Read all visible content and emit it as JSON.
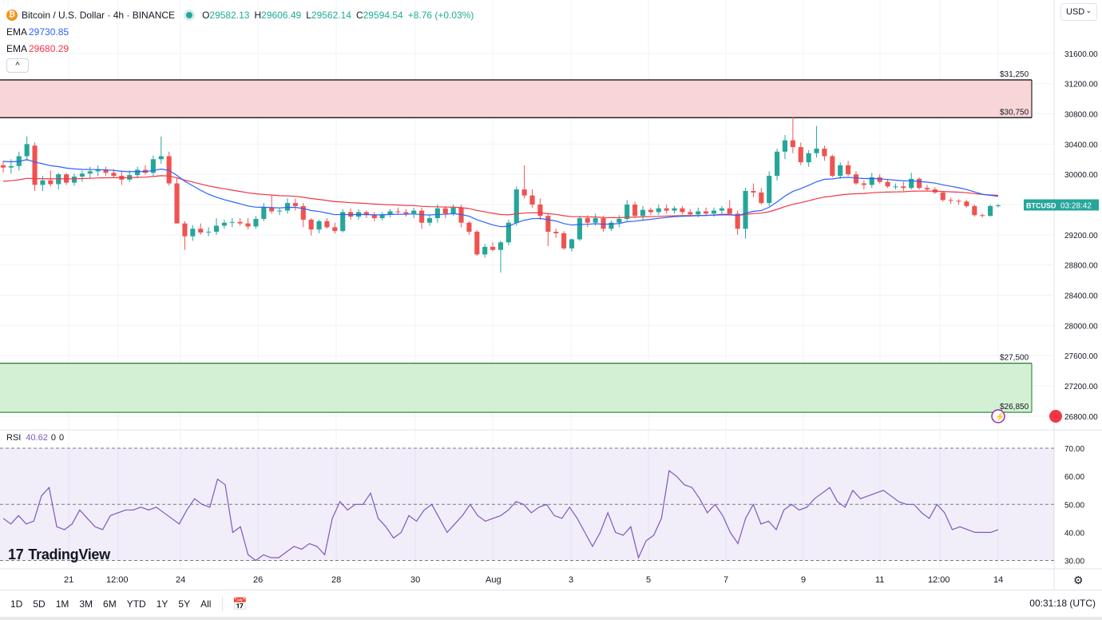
{
  "header": {
    "symbol_title": "Bitcoin / U.S. Dollar · 4h · BINANCE",
    "btc_badge": "₿",
    "ohlc": {
      "o_label": "O",
      "o": "29582.13",
      "h_label": "H",
      "h": "29606.49",
      "l_label": "L",
      "l": "29562.14",
      "c_label": "C",
      "c": "29594.54",
      "change": "+8.76 (+0.03%)"
    },
    "ema1_label": "EMA",
    "ema1_value": "29730.85",
    "ema2_label": "EMA",
    "ema2_value": "29680.29",
    "collapse_icon": "^",
    "currency": "USD"
  },
  "colors": {
    "up": "#26a69a",
    "down": "#ef5350",
    "ema_fast": "#2962ff",
    "ema_slow": "#f23645",
    "rsi": "#7e57c2",
    "resistance_zone": "#f8d6d8",
    "support_zone": "#d4f0d4"
  },
  "chart_data": [
    {
      "type": "candlestick",
      "title": "Bitcoin / U.S. Dollar · 4h · BINANCE",
      "price_axis_ticks": [
        "31600.00",
        "31200.00",
        "30800.00",
        "30400.00",
        "30000.00",
        "29600.00",
        "29200.00",
        "28800.00",
        "28400.00",
        "28000.00",
        "27600.00",
        "27200.00",
        "26800.00"
      ],
      "price_ylim": [
        26650,
        31990
      ],
      "time_axis_ticks": [
        "21",
        "12:00",
        "24",
        "26",
        "28",
        "30",
        "Aug",
        "3",
        "5",
        "7",
        "9",
        "11",
        "12:00",
        "14"
      ],
      "levels": [
        {
          "label": "$31,250",
          "value": 31250
        },
        {
          "label": "$30,750",
          "value": 30750
        },
        {
          "label": "$27,500",
          "value": 27500
        },
        {
          "label": "$26,850",
          "value": 26850
        }
      ],
      "zones": [
        {
          "name": "resistance",
          "from": 30750,
          "to": 31250
        },
        {
          "name": "support",
          "from": 26850,
          "to": 27500
        }
      ],
      "last_price_tag": {
        "symbol": "BTCUSD",
        "countdown": "03:28:42",
        "value": 29595
      },
      "candles": [
        [
          30120,
          30180,
          30020,
          30090
        ],
        [
          30090,
          30200,
          30010,
          30110
        ],
        [
          30110,
          30300,
          30050,
          30240
        ],
        [
          30240,
          30500,
          30180,
          30400
        ],
        [
          30380,
          30420,
          29780,
          29860
        ],
        [
          29860,
          29980,
          29780,
          29920
        ],
        [
          29920,
          30050,
          29840,
          29870
        ],
        [
          29870,
          30020,
          29800,
          30000
        ],
        [
          30000,
          30020,
          29860,
          29890
        ],
        [
          29890,
          30010,
          29850,
          29970
        ],
        [
          29970,
          30050,
          29900,
          30010
        ],
        [
          30010,
          30100,
          29950,
          30040
        ],
        [
          30040,
          30120,
          29980,
          30060
        ],
        [
          30060,
          30100,
          29980,
          30020
        ],
        [
          30020,
          30070,
          29960,
          29980
        ],
        [
          29980,
          30050,
          29860,
          29930
        ],
        [
          29930,
          30050,
          29900,
          29990
        ],
        [
          29990,
          30100,
          29950,
          30060
        ],
        [
          30060,
          30120,
          30000,
          30020
        ],
        [
          30020,
          30250,
          29980,
          30200
        ],
        [
          30200,
          30500,
          30140,
          30240
        ],
        [
          30240,
          30300,
          29850,
          29880
        ],
        [
          29880,
          29960,
          29350,
          29350
        ],
        [
          29350,
          29380,
          29000,
          29180
        ],
        [
          29180,
          29330,
          29120,
          29280
        ],
        [
          29280,
          29350,
          29200,
          29230
        ],
        [
          29230,
          29300,
          29180,
          29240
        ],
        [
          29240,
          29420,
          29200,
          29320
        ],
        [
          29320,
          29400,
          29280,
          29360
        ],
        [
          29360,
          29420,
          29300,
          29370
        ],
        [
          29370,
          29420,
          29320,
          29350
        ],
        [
          29350,
          29420,
          29270,
          29310
        ],
        [
          29310,
          29450,
          29280,
          29410
        ],
        [
          29410,
          29620,
          29380,
          29560
        ],
        [
          29560,
          29720,
          29480,
          29510
        ],
        [
          29510,
          29560,
          29460,
          29520
        ],
        [
          29520,
          29680,
          29480,
          29620
        ],
        [
          29620,
          29680,
          29520,
          29580
        ],
        [
          29580,
          29620,
          29300,
          29400
        ],
        [
          29400,
          29420,
          29190,
          29270
        ],
        [
          29270,
          29400,
          29220,
          29380
        ],
        [
          29380,
          29420,
          29280,
          29300
        ],
        [
          29300,
          29360,
          29220,
          29250
        ],
        [
          29250,
          29540,
          29230,
          29500
        ],
        [
          29500,
          29550,
          29400,
          29440
        ],
        [
          29440,
          29540,
          29400,
          29500
        ],
        [
          29500,
          29520,
          29420,
          29460
        ],
        [
          29460,
          29500,
          29380,
          29420
        ],
        [
          29420,
          29500,
          29390,
          29470
        ],
        [
          29470,
          29540,
          29430,
          29510
        ],
        [
          29510,
          29560,
          29470,
          29500
        ],
        [
          29500,
          29540,
          29440,
          29480
        ],
        [
          29480,
          29560,
          29420,
          29520
        ],
        [
          29520,
          29560,
          29280,
          29360
        ],
        [
          29360,
          29460,
          29320,
          29420
        ],
        [
          29420,
          29600,
          29360,
          29550
        ],
        [
          29550,
          29580,
          29420,
          29480
        ],
        [
          29480,
          29600,
          29450,
          29560
        ],
        [
          29560,
          29600,
          29300,
          29360
        ],
        [
          29360,
          29380,
          29200,
          29240
        ],
        [
          29240,
          29260,
          28920,
          28940
        ],
        [
          28940,
          29080,
          28900,
          29040
        ],
        [
          29040,
          29100,
          28980,
          29000
        ],
        [
          29000,
          29120,
          28700,
          29100
        ],
        [
          29100,
          29400,
          29060,
          29360
        ],
        [
          29360,
          29840,
          29320,
          29800
        ],
        [
          29800,
          30120,
          29680,
          29720
        ],
        [
          29720,
          29800,
          29560,
          29600
        ],
        [
          29600,
          29680,
          29400,
          29450
        ],
        [
          29450,
          29480,
          29050,
          29240
        ],
        [
          29240,
          29280,
          29160,
          29220
        ],
        [
          29220,
          29250,
          29000,
          29020
        ],
        [
          29020,
          29150,
          28980,
          29140
        ],
        [
          29140,
          29450,
          29120,
          29420
        ],
        [
          29420,
          29460,
          29300,
          29360
        ],
        [
          29360,
          29480,
          29320,
          29420
        ],
        [
          29420,
          29450,
          29240,
          29280
        ],
        [
          29280,
          29390,
          29250,
          29360
        ],
        [
          29360,
          29460,
          29300,
          29410
        ],
        [
          29410,
          29660,
          29380,
          29600
        ],
        [
          29600,
          29640,
          29420,
          29450
        ],
        [
          29450,
          29580,
          29400,
          29530
        ],
        [
          29530,
          29560,
          29460,
          29500
        ],
        [
          29500,
          29600,
          29460,
          29550
        ],
        [
          29550,
          29600,
          29480,
          29520
        ],
        [
          29520,
          29580,
          29480,
          29550
        ],
        [
          29550,
          29580,
          29470,
          29500
        ],
        [
          29500,
          29540,
          29440,
          29470
        ],
        [
          29470,
          29560,
          29430,
          29510
        ],
        [
          29510,
          29560,
          29450,
          29480
        ],
        [
          29480,
          29560,
          29440,
          29520
        ],
        [
          29520,
          29580,
          29470,
          29550
        ],
        [
          29550,
          29660,
          29460,
          29480
        ],
        [
          29480,
          29520,
          29200,
          29280
        ],
        [
          29280,
          29820,
          29150,
          29780
        ],
        [
          29780,
          29880,
          29700,
          29760
        ],
        [
          29760,
          29820,
          29600,
          29620
        ],
        [
          29620,
          30040,
          29580,
          29980
        ],
        [
          29980,
          30340,
          29920,
          30300
        ],
        [
          30300,
          30520,
          30200,
          30450
        ],
        [
          30450,
          30760,
          30280,
          30360
        ],
        [
          30360,
          30420,
          30120,
          30160
        ],
        [
          30160,
          30320,
          30100,
          30280
        ],
        [
          30280,
          30640,
          30220,
          30340
        ],
        [
          30340,
          30380,
          30180,
          30240
        ],
        [
          30240,
          30260,
          29960,
          29980
        ],
        [
          29980,
          30160,
          29940,
          30120
        ],
        [
          30120,
          30180,
          29980,
          30000
        ],
        [
          30000,
          30040,
          29860,
          29880
        ],
        [
          29880,
          29920,
          29800,
          29860
        ],
        [
          29860,
          30020,
          29820,
          29960
        ],
        [
          29960,
          30000,
          29880,
          29900
        ],
        [
          29900,
          29940,
          29820,
          29840
        ],
        [
          29840,
          29880,
          29800,
          29840
        ],
        [
          29840,
          29900,
          29780,
          29820
        ],
        [
          29820,
          30020,
          29800,
          29940
        ],
        [
          29940,
          29960,
          29800,
          29820
        ],
        [
          29820,
          29860,
          29780,
          29800
        ],
        [
          29800,
          29830,
          29740,
          29760
        ],
        [
          29760,
          29780,
          29640,
          29660
        ],
        [
          29660,
          29690,
          29610,
          29650
        ],
        [
          29650,
          29670,
          29600,
          29640
        ],
        [
          29640,
          29660,
          29560,
          29580
        ],
        [
          29580,
          29600,
          29440,
          29460
        ],
        [
          29460,
          29480,
          29430,
          29450
        ],
        [
          29450,
          29600,
          29440,
          29580
        ],
        [
          29580,
          29610,
          29560,
          29590
        ]
      ],
      "ema_fast": [
        29730.85
      ],
      "ema_slow": [
        29680.29
      ]
    },
    {
      "type": "line",
      "title": "RSI",
      "legend": {
        "label": "RSI",
        "value": "40.62",
        "extra1": "0",
        "extra2": "0"
      },
      "ylim": [
        27,
        76
      ],
      "axis_ticks": [
        "70.00",
        "60.00",
        "50.00",
        "40.00",
        "30.00"
      ],
      "guides": [
        70,
        50,
        30
      ],
      "values": [
        45,
        43,
        46,
        43,
        44,
        53,
        56,
        42,
        41,
        43,
        48,
        45,
        42,
        41,
        46,
        47,
        48,
        48,
        49,
        48,
        49,
        47,
        45,
        43,
        48,
        52,
        50,
        49,
        59,
        57,
        40,
        42,
        32,
        30,
        32,
        31,
        31,
        33,
        35,
        34,
        36,
        35,
        32,
        45,
        51,
        48,
        50,
        50,
        54,
        45,
        42,
        38,
        40,
        46,
        44,
        48,
        50,
        45,
        40,
        43,
        46,
        50,
        46,
        44,
        45,
        46,
        48,
        51,
        50,
        47,
        49,
        50,
        46,
        45,
        49,
        45,
        40,
        35,
        40,
        47,
        40,
        39,
        42,
        31,
        37,
        39,
        45,
        62,
        60,
        57,
        56,
        52,
        47,
        50,
        46,
        40,
        36,
        45,
        50,
        43,
        44,
        41,
        48,
        50,
        48,
        49,
        52,
        54,
        56,
        51,
        49,
        55,
        52,
        53,
        54,
        55,
        53,
        51,
        50,
        50,
        47,
        45,
        50,
        47,
        41,
        42,
        41,
        40,
        40,
        40,
        41
      ]
    }
  ],
  "rsi_legend": {
    "label": "RSI",
    "value": "40.62",
    "a": "0",
    "b": "0"
  },
  "branding": {
    "name": "TradingView",
    "mark": "17"
  },
  "timeframes": [
    "1D",
    "5D",
    "1M",
    "3M",
    "6M",
    "YTD",
    "1Y",
    "5Y",
    "All"
  ],
  "calendar_icon": "calendar-range-icon",
  "clock_text": "00:31:18 (UTC)",
  "settings_icon": "gear-icon"
}
